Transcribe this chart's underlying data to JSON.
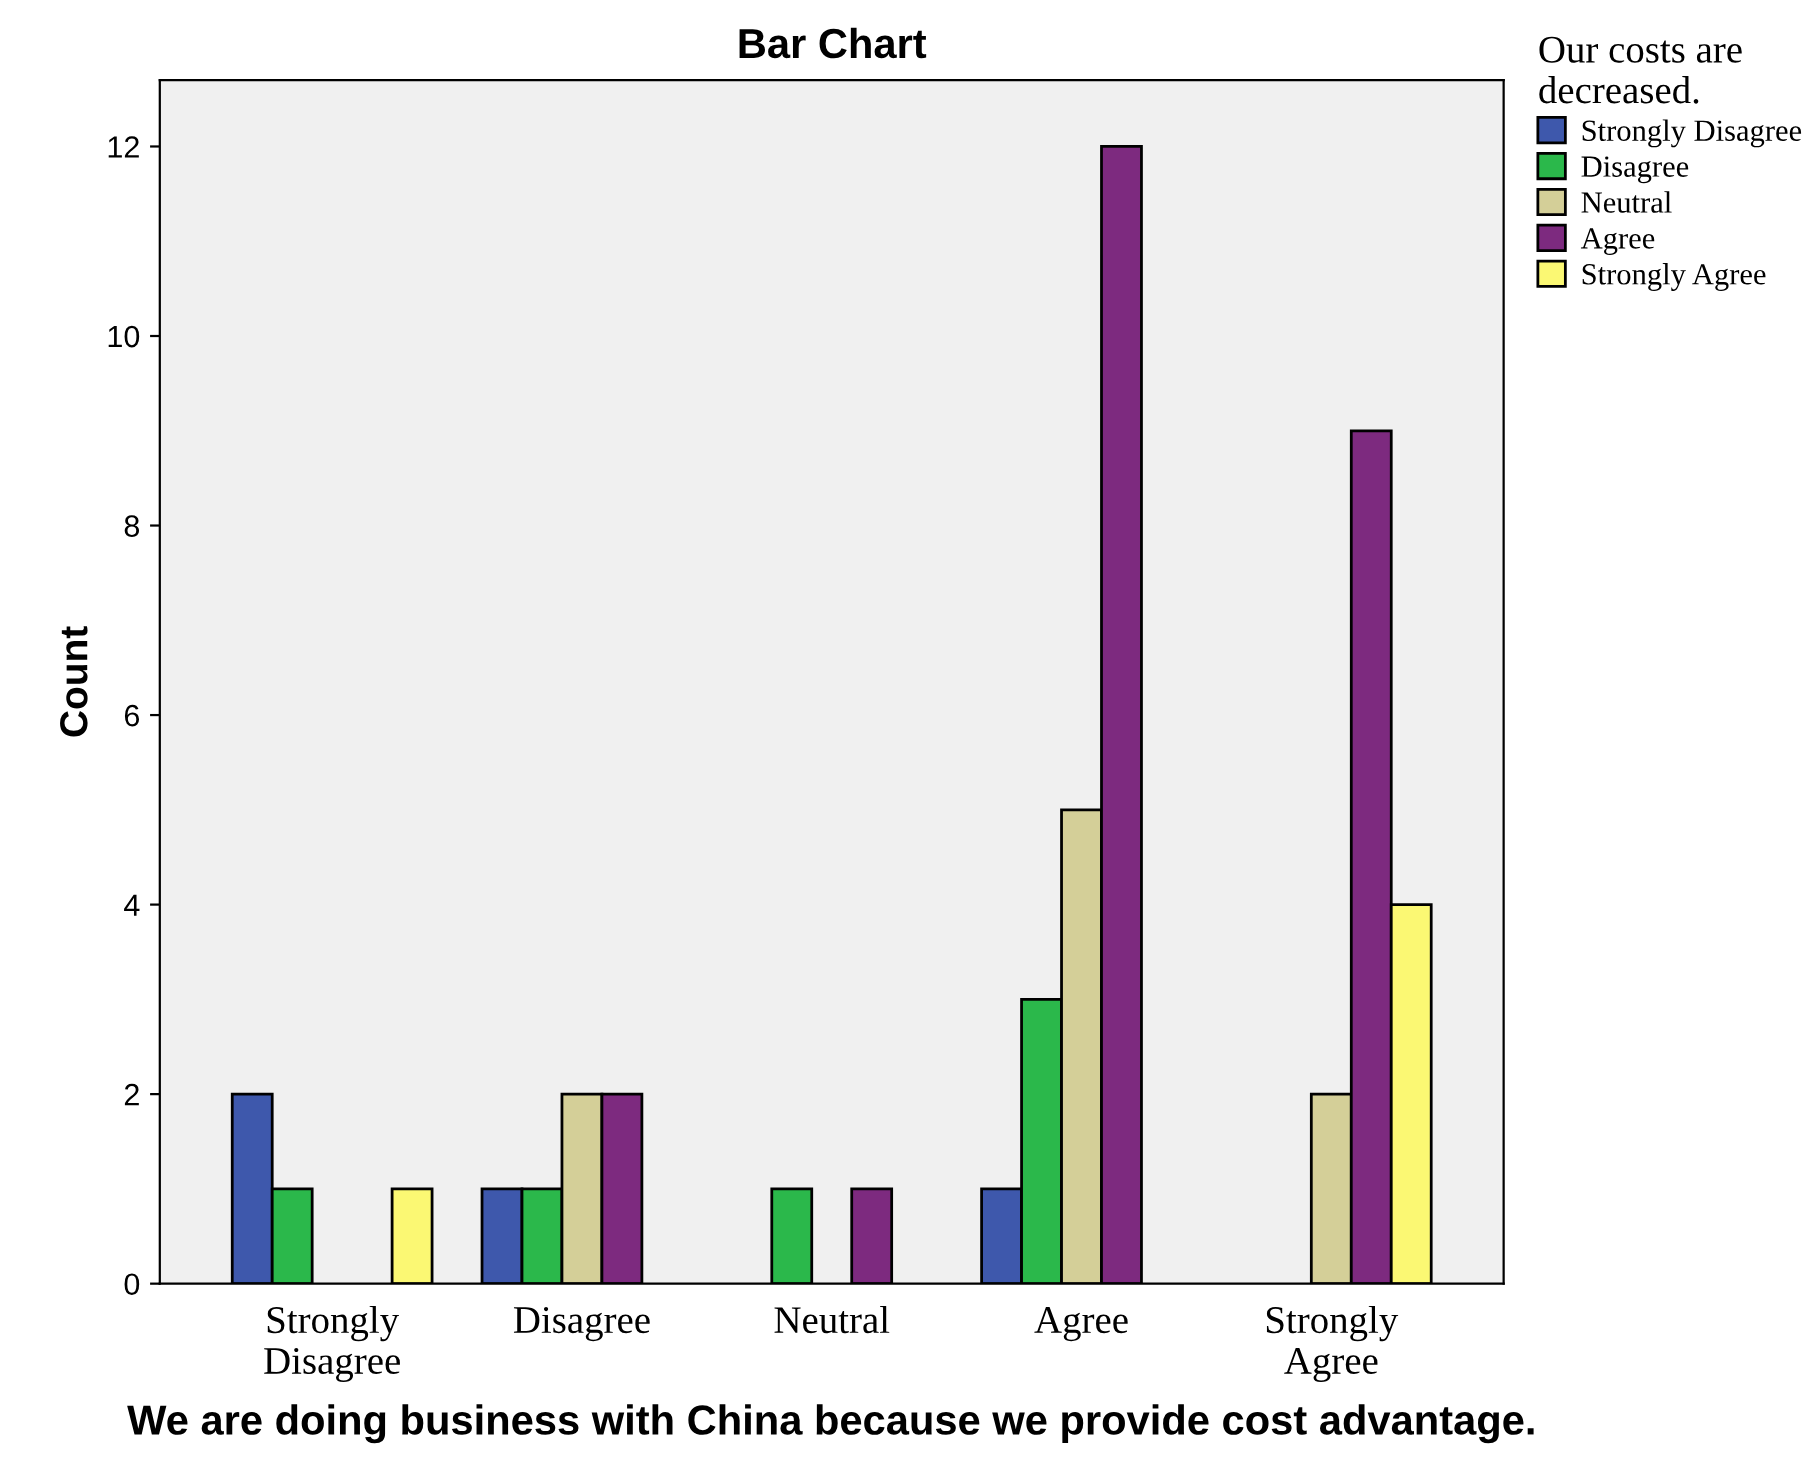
{
  "chart_data": {
    "type": "bar",
    "title": "Bar Chart",
    "xlabel": "We are doing business with China because we provide cost advantage.",
    "ylabel": "Count",
    "legend_title": "Our costs are decreased.",
    "categories": [
      "Strongly Disagree",
      "Disagree",
      "Neutral",
      "Agree",
      "Strongly Agree"
    ],
    "series": [
      {
        "name": "Strongly Disagree",
        "color": "#3e58ac",
        "values": [
          2,
          1,
          null,
          1,
          null
        ]
      },
      {
        "name": "Disagree",
        "color": "#2bb84b",
        "values": [
          1,
          1,
          1,
          3,
          null
        ]
      },
      {
        "name": "Neutral",
        "color": "#d4cf98",
        "values": [
          null,
          2,
          null,
          5,
          2
        ]
      },
      {
        "name": "Agree",
        "color": "#7d2a7f",
        "values": [
          null,
          2,
          1,
          12,
          9
        ]
      },
      {
        "name": "Strongly Agree",
        "color": "#fbf873",
        "values": [
          1,
          null,
          null,
          null,
          4
        ]
      }
    ],
    "ylim": [
      0,
      12.7
    ],
    "yticks": [
      0,
      2,
      4,
      6,
      8,
      10,
      12
    ],
    "grid": false,
    "legend": "top right"
  }
}
